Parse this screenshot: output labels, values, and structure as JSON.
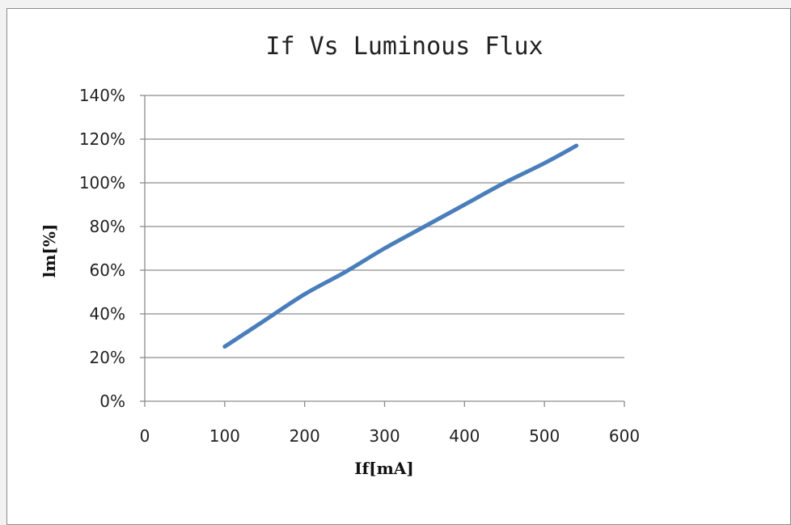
{
  "chart_data": {
    "type": "line",
    "title": "If Vs Luminous Flux",
    "xlabel": "If[mA]",
    "ylabel": "lm[%]",
    "xlim": [
      0,
      600
    ],
    "ylim": [
      0,
      1.4
    ],
    "x_ticks": [
      "0",
      "100",
      "200",
      "300",
      "400",
      "500",
      "600"
    ],
    "y_ticks": [
      "0%",
      "20%",
      "40%",
      "60%",
      "80%",
      "100%",
      "120%",
      "140%"
    ],
    "grid": "horizontal",
    "legend": "none",
    "series": [
      {
        "color": "#4a7ebb",
        "x": [
          100,
          150,
          200,
          250,
          300,
          350,
          400,
          450,
          500,
          540
        ],
        "y": [
          0.25,
          0.37,
          0.49,
          0.59,
          0.7,
          0.8,
          0.9,
          1.0,
          1.09,
          1.17
        ]
      }
    ]
  }
}
